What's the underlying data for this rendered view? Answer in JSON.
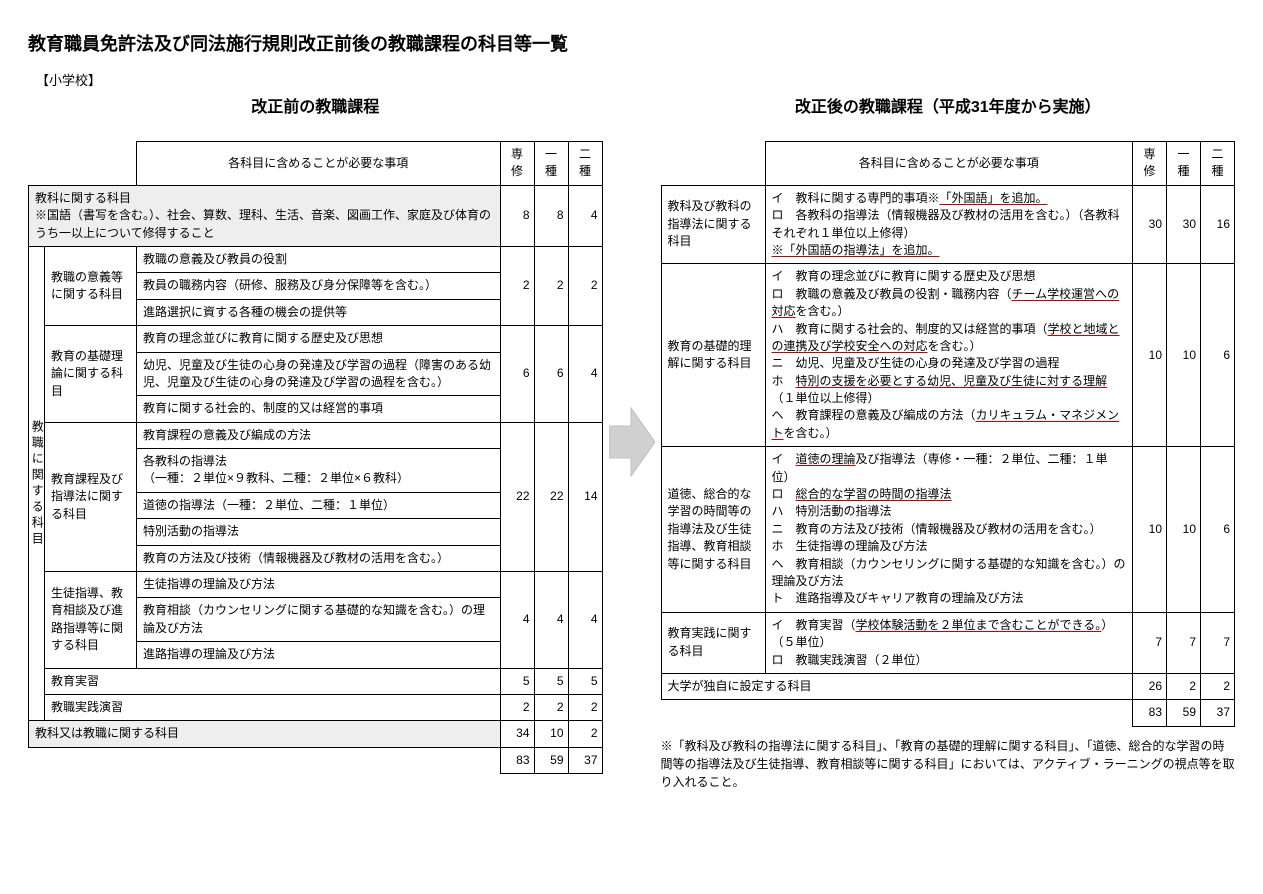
{
  "title": "教育職員免許法及び同法施行規則改正前後の教職課程の科目等一覧",
  "subhead": "【小学校】",
  "before": {
    "title": "改正前の教職課程",
    "header_required": "各科目に含めることが必要な事項",
    "cols": [
      "専修",
      "一種",
      "二種"
    ],
    "subject_row": {
      "label": "教科に関する科目\n※国語（書写を含む。）、社会、算数、理科、生活、音楽、図画工作、家庭及び体育のうち一以上について修得すること",
      "vals": [
        8,
        8,
        4
      ]
    },
    "vertical_label": "教職に関する科目",
    "groups": [
      {
        "cat": "教職の意義等に関する科目",
        "items": [
          "教職の意義及び教員の役割",
          "教員の職務内容（研修、服務及び身分保障等を含む。）",
          "進路選択に資する各種の機会の提供等"
        ],
        "vals": [
          2,
          2,
          2
        ]
      },
      {
        "cat": "教育の基礎理論に関する科目",
        "items": [
          "教育の理念並びに教育に関する歴史及び思想",
          "幼児、児童及び生徒の心身の発達及び学習の過程（障害のある幼児、児童及び生徒の心身の発達及び学習の過程を含む。）",
          "教育に関する社会的、制度的又は経営的事項"
        ],
        "vals": [
          6,
          6,
          4
        ]
      },
      {
        "cat": "教育課程及び指導法に関する科目",
        "items": [
          "教育課程の意義及び編成の方法",
          "各教科の指導法\n（一種：２単位×９教科、二種：２単位×６教科）",
          "道徳の指導法（一種：２単位、二種：１単位）",
          "特別活動の指導法",
          "教育の方法及び技術（情報機器及び教材の活用を含む。）"
        ],
        "vals": [
          22,
          22,
          14
        ]
      },
      {
        "cat": "生徒指導、教育相談及び進路指導等に関する科目",
        "items": [
          "生徒指導の理論及び方法",
          "教育相談（カウンセリングに関する基礎的な知識を含む。）の理論及び方法",
          "進路指導の理論及び方法"
        ],
        "vals": [
          4,
          4,
          4
        ]
      }
    ],
    "simple_rows": [
      {
        "label": "教育実習",
        "vals": [
          5,
          5,
          5
        ]
      },
      {
        "label": "教職実践演習",
        "vals": [
          2,
          2,
          2
        ]
      }
    ],
    "or_row": {
      "label": "教科又は教職に関する科目",
      "vals": [
        34,
        10,
        2
      ]
    },
    "totals": [
      83,
      59,
      37
    ]
  },
  "after": {
    "title": "改正後の教職課程（平成31年度から実施）",
    "header_required": "各科目に含めることが必要な事項",
    "cols": [
      "専修",
      "一種",
      "二種"
    ],
    "rows": [
      {
        "cat": "教科及び教科の指導法に関する科目",
        "body_html": "イ　教科に関する専門的事項※<span class='u'>「外国語」を追加。</span><br>ロ　各教科の指導法（情報機器及び教材の活用を含む。）（各教科それぞれ１単位以上修得）<br><span class='u'>※「外国語の指導法」を追加。</span>",
        "vals": [
          30,
          30,
          16
        ]
      },
      {
        "cat": "教育の基礎的理解に関する科目",
        "body_html": "イ　教育の理念並びに教育に関する歴史及び思想<br>ロ　教職の意義及び教員の役割・職務内容（<span class='u'>チーム学校運営への対応</span>を含む。）<br>ハ　教育に関する社会的、制度的又は経営的事項（<span class='u'>学校と地域との連携及び学校安全への対応</span>を含む。）<br>ニ　幼児、児童及び生徒の心身の発達及び学習の過程<br>ホ　<span class='u'>特別の支援を必要とする幼児、児童及び生徒に対する理解</span>（１単位以上修得）<br>ヘ　教育課程の意義及び編成の方法（<span class='u'>カリキュラム・マネジメント</span>を含む。）",
        "vals": [
          10,
          10,
          6
        ]
      },
      {
        "cat": "道徳、総合的な学習の時間等の指導法及び生徒指導、教育相談等に関する科目",
        "body_html": "イ　<span class='u'>道徳の理論</span>及び指導法（専修・一種：２単位、二種：１単位）<br>ロ　<span class='u'>総合的な学習の時間の指導法</span><br>ハ　特別活動の指導法<br>ニ　教育の方法及び技術（情報機器及び教材の活用を含む。）<br>ホ　生徒指導の理論及び方法<br>ヘ　教育相談（カウンセリングに関する基礎的な知識を含む。）の理論及び方法<br>ト　進路指導及びキャリア教育の理論及び方法",
        "vals": [
          10,
          10,
          6
        ]
      },
      {
        "cat": "教育実践に関する科目",
        "body_html": "イ　教育実習（<span class='u'>学校体験活動を２単位まで含むことができる。</span>）（５単位）<br>ロ　教職実践演習（２単位）",
        "vals": [
          7,
          7,
          7
        ]
      }
    ],
    "univ_row": {
      "label": "大学が独自に設定する科目",
      "vals": [
        26,
        2,
        2
      ]
    },
    "totals": [
      83,
      59,
      37
    ],
    "footnote": "※「教科及び教科の指導法に関する科目」、「教育の基礎的理解に関する科目」、「道徳、総合的な学習の時間等の指導法及び生徒指導、教育相談等に関する科目」においては、アクティブ・ラーニングの視点等を取り入れること。"
  },
  "arrow_color": "#d0d0d0"
}
